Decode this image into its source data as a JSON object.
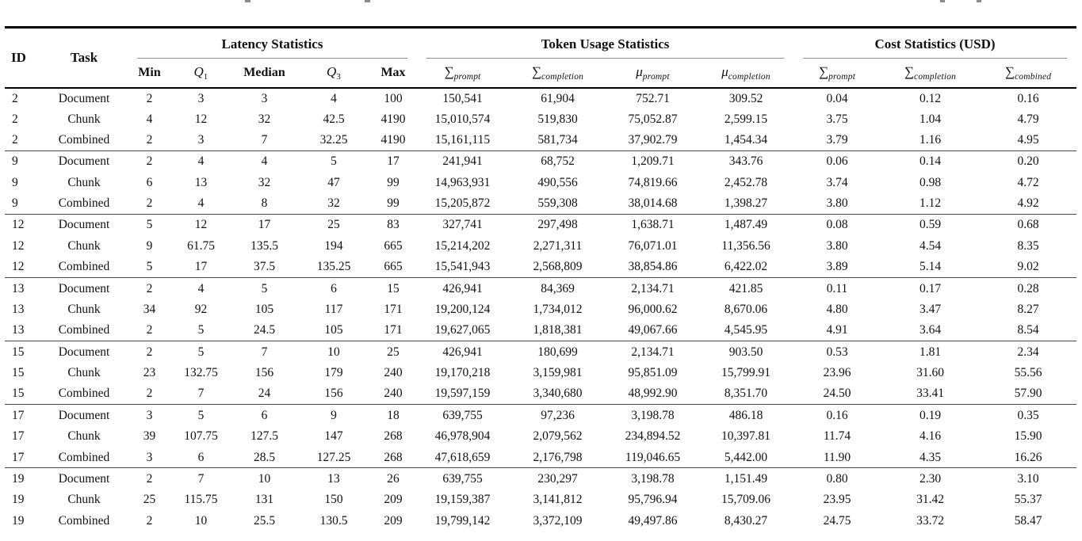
{
  "table": {
    "col_headers": {
      "id": "ID",
      "task": "Task"
    },
    "groups": [
      {
        "label": "Latency Statistics"
      },
      {
        "label": "Token Usage Statistics"
      },
      {
        "label": "Cost Statistics (USD)"
      }
    ],
    "subheaders": [
      {
        "label": "Min"
      },
      {
        "sym": "Q",
        "sub": "1"
      },
      {
        "label": "Median"
      },
      {
        "sym": "Q",
        "sub": "3"
      },
      {
        "label": "Max"
      },
      {
        "sym": "∑",
        "sub": "prompt"
      },
      {
        "sym": "∑",
        "sub": "completion"
      },
      {
        "sym": "μ",
        "sub": "prompt"
      },
      {
        "sym": "μ",
        "sub": "completion"
      },
      {
        "sym": "∑",
        "sub": "prompt"
      },
      {
        "sym": "∑",
        "sub": "completion"
      },
      {
        "sym": "∑",
        "sub": "combined"
      }
    ],
    "rows": [
      {
        "id": "2",
        "task": "Document",
        "values": [
          "2",
          "3",
          "3",
          "4",
          "100",
          "150,541",
          "61,904",
          "752.71",
          "309.52",
          "0.04",
          "0.12",
          "0.16"
        ]
      },
      {
        "id": "2",
        "task": "Chunk",
        "values": [
          "4",
          "12",
          "32",
          "42.5",
          "4190",
          "15,010,574",
          "519,830",
          "75,052.87",
          "2,599.15",
          "3.75",
          "1.04",
          "4.79"
        ]
      },
      {
        "id": "2",
        "task": "Combined",
        "values": [
          "2",
          "3",
          "7",
          "32.25",
          "4190",
          "15,161,115",
          "581,734",
          "37,902.79",
          "1,454.34",
          "3.79",
          "1.16",
          "4.95"
        ]
      },
      {
        "id": "9",
        "task": "Document",
        "values": [
          "2",
          "4",
          "4",
          "5",
          "17",
          "241,941",
          "68,752",
          "1,209.71",
          "343.76",
          "0.06",
          "0.14",
          "0.20"
        ]
      },
      {
        "id": "9",
        "task": "Chunk",
        "values": [
          "6",
          "13",
          "32",
          "47",
          "99",
          "14,963,931",
          "490,556",
          "74,819.66",
          "2,452.78",
          "3.74",
          "0.98",
          "4.72"
        ]
      },
      {
        "id": "9",
        "task": "Combined",
        "values": [
          "2",
          "4",
          "8",
          "32",
          "99",
          "15,205,872",
          "559,308",
          "38,014.68",
          "1,398.27",
          "3.80",
          "1.12",
          "4.92"
        ]
      },
      {
        "id": "12",
        "task": "Document",
        "values": [
          "5",
          "12",
          "17",
          "25",
          "83",
          "327,741",
          "297,498",
          "1,638.71",
          "1,487.49",
          "0.08",
          "0.59",
          "0.68"
        ]
      },
      {
        "id": "12",
        "task": "Chunk",
        "values": [
          "9",
          "61.75",
          "135.5",
          "194",
          "665",
          "15,214,202",
          "2,271,311",
          "76,071.01",
          "11,356.56",
          "3.80",
          "4.54",
          "8.35"
        ]
      },
      {
        "id": "12",
        "task": "Combined",
        "values": [
          "5",
          "17",
          "37.5",
          "135.25",
          "665",
          "15,541,943",
          "2,568,809",
          "38,854.86",
          "6,422.02",
          "3.89",
          "5.14",
          "9.02"
        ]
      },
      {
        "id": "13",
        "task": "Document",
        "values": [
          "2",
          "4",
          "5",
          "6",
          "15",
          "426,941",
          "84,369",
          "2,134.71",
          "421.85",
          "0.11",
          "0.17",
          "0.28"
        ]
      },
      {
        "id": "13",
        "task": "Chunk",
        "values": [
          "34",
          "92",
          "105",
          "117",
          "171",
          "19,200,124",
          "1,734,012",
          "96,000.62",
          "8,670.06",
          "4.80",
          "3.47",
          "8.27"
        ]
      },
      {
        "id": "13",
        "task": "Combined",
        "values": [
          "2",
          "5",
          "24.5",
          "105",
          "171",
          "19,627,065",
          "1,818,381",
          "49,067.66",
          "4,545.95",
          "4.91",
          "3.64",
          "8.54"
        ]
      },
      {
        "id": "15",
        "task": "Document",
        "values": [
          "2",
          "5",
          "7",
          "10",
          "25",
          "426,941",
          "180,699",
          "2,134.71",
          "903.50",
          "0.53",
          "1.81",
          "2.34"
        ]
      },
      {
        "id": "15",
        "task": "Chunk",
        "values": [
          "23",
          "132.75",
          "156",
          "179",
          "240",
          "19,170,218",
          "3,159,981",
          "95,851.09",
          "15,799.91",
          "23.96",
          "31.60",
          "55.56"
        ]
      },
      {
        "id": "15",
        "task": "Combined",
        "values": [
          "2",
          "7",
          "24",
          "156",
          "240",
          "19,597,159",
          "3,340,680",
          "48,992.90",
          "8,351.70",
          "24.50",
          "33.41",
          "57.90"
        ]
      },
      {
        "id": "17",
        "task": "Document",
        "values": [
          "3",
          "5",
          "6",
          "9",
          "18",
          "639,755",
          "97,236",
          "3,198.78",
          "486.18",
          "0.16",
          "0.19",
          "0.35"
        ]
      },
      {
        "id": "17",
        "task": "Chunk",
        "values": [
          "39",
          "107.75",
          "127.5",
          "147",
          "268",
          "46,978,904",
          "2,079,562",
          "234,894.52",
          "10,397.81",
          "11.74",
          "4.16",
          "15.90"
        ]
      },
      {
        "id": "17",
        "task": "Combined",
        "values": [
          "3",
          "6",
          "28.5",
          "127.25",
          "268",
          "47,618,659",
          "2,176,798",
          "119,046.65",
          "5,442.00",
          "11.90",
          "4.35",
          "16.26"
        ]
      },
      {
        "id": "19",
        "task": "Document",
        "values": [
          "2",
          "7",
          "10",
          "13",
          "26",
          "639,755",
          "230,297",
          "3,198.78",
          "1,151.49",
          "0.80",
          "2.30",
          "3.10"
        ]
      },
      {
        "id": "19",
        "task": "Chunk",
        "values": [
          "25",
          "115.75",
          "131",
          "150",
          "209",
          "19,159,387",
          "3,141,812",
          "95,796.94",
          "15,709.06",
          "23.95",
          "31.42",
          "55.37"
        ]
      },
      {
        "id": "19",
        "task": "Combined",
        "values": [
          "2",
          "10",
          "25.5",
          "130.5",
          "209",
          "19,799,142",
          "3,372,109",
          "49,497.86",
          "8,430.27",
          "24.75",
          "33.72",
          "58.47"
        ]
      }
    ]
  }
}
